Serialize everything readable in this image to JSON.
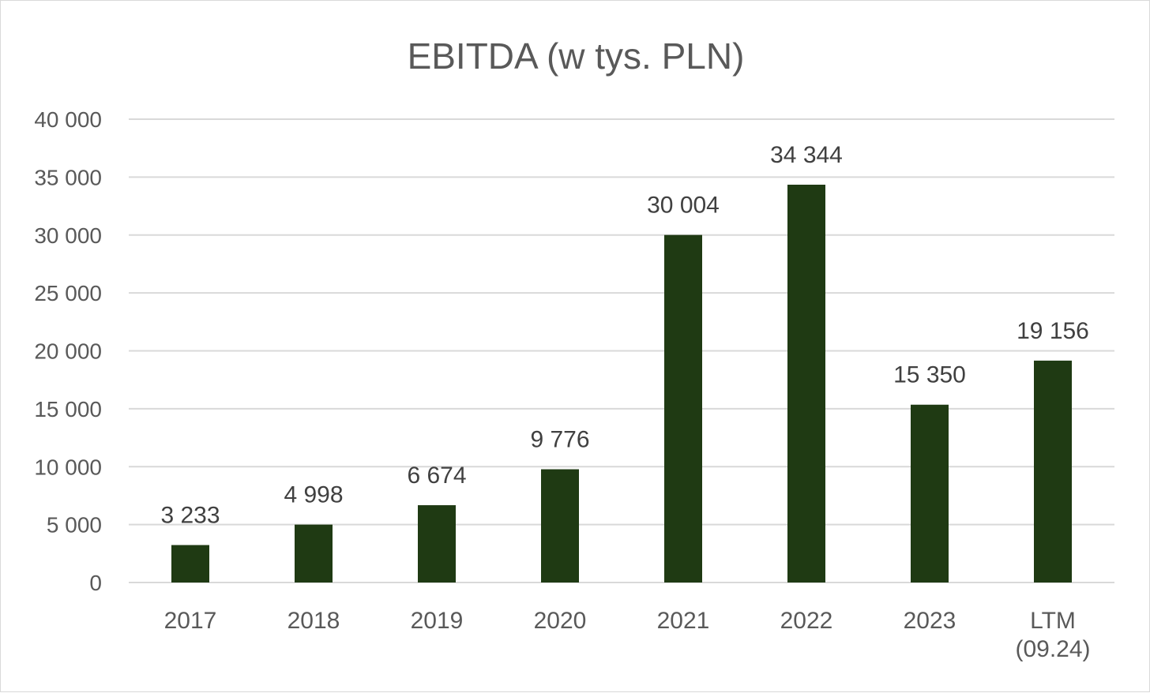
{
  "colors": {
    "bar": "#1f3a13",
    "grid": "#d9d9d9",
    "text": "#595959"
  },
  "chart_data": {
    "type": "bar",
    "title": "EBITDA (w tys. PLN)",
    "xlabel": "",
    "ylabel": "",
    "ylim": [
      0,
      40000
    ],
    "yticks": [
      0,
      5000,
      10000,
      15000,
      20000,
      25000,
      30000,
      35000,
      40000
    ],
    "ytick_labels": [
      "0",
      "5 000",
      "10 000",
      "15 000",
      "20 000",
      "25 000",
      "30 000",
      "35 000",
      "40 000"
    ],
    "grid": true,
    "legend": "none",
    "categories": [
      "2017",
      "2018",
      "2019",
      "2020",
      "2021",
      "2022",
      "2023",
      "LTM\n(09.24)"
    ],
    "values": [
      3233,
      4998,
      6674,
      9776,
      30004,
      34344,
      15350,
      19156
    ],
    "value_labels": [
      "3 233",
      "4 998",
      "6 674",
      "9 776",
      "30 004",
      "34 344",
      "15 350",
      "19 156"
    ]
  }
}
